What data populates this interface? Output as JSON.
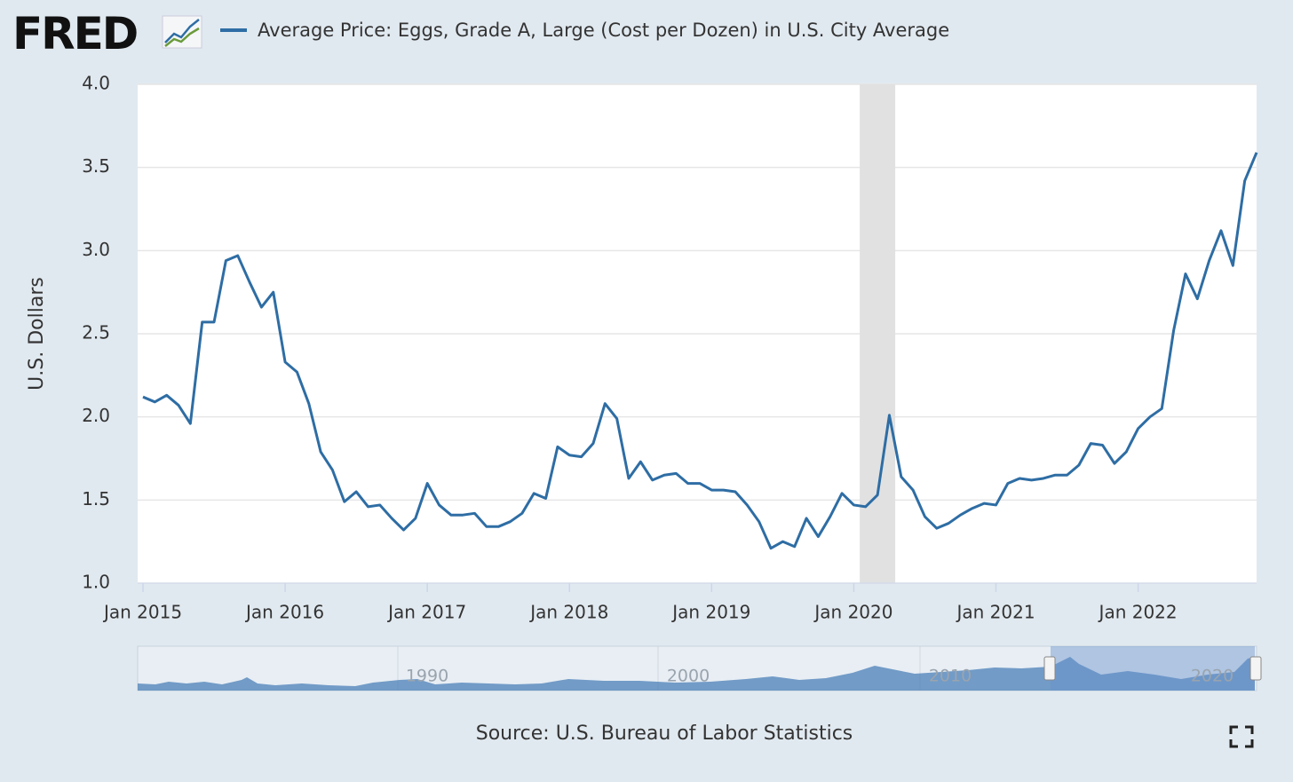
{
  "logo": "FRED",
  "source": "Source: U.S. Bureau of Labor Statistics",
  "navigator": {
    "labels": [
      "1990",
      "2000",
      "2010",
      "2020"
    ]
  },
  "chart_data": {
    "type": "line",
    "y_label": "U.S. Dollars",
    "x": [
      "2015-01",
      "2015-02",
      "2015-03",
      "2015-04",
      "2015-05",
      "2015-06",
      "2015-07",
      "2015-08",
      "2015-09",
      "2015-10",
      "2015-11",
      "2015-12",
      "2016-01",
      "2016-02",
      "2016-03",
      "2016-04",
      "2016-05",
      "2016-06",
      "2016-07",
      "2016-08",
      "2016-09",
      "2016-10",
      "2016-11",
      "2016-12",
      "2017-01",
      "2017-02",
      "2017-03",
      "2017-04",
      "2017-05",
      "2017-06",
      "2017-07",
      "2017-08",
      "2017-09",
      "2017-10",
      "2017-11",
      "2017-12",
      "2018-01",
      "2018-02",
      "2018-03",
      "2018-04",
      "2018-05",
      "2018-06",
      "2018-07",
      "2018-08",
      "2018-09",
      "2018-10",
      "2018-11",
      "2018-12",
      "2019-01",
      "2019-02",
      "2019-03",
      "2019-04",
      "2019-05",
      "2019-06",
      "2019-07",
      "2019-08",
      "2019-09",
      "2019-10",
      "2019-11",
      "2019-12",
      "2020-01",
      "2020-02",
      "2020-03",
      "2020-04",
      "2020-05",
      "2020-06",
      "2020-07",
      "2020-08",
      "2020-09",
      "2020-10",
      "2020-11",
      "2020-12",
      "2021-01",
      "2021-02",
      "2021-03",
      "2021-04",
      "2021-05",
      "2021-06",
      "2021-07",
      "2021-08",
      "2021-09",
      "2021-10",
      "2021-11",
      "2021-12",
      "2022-01",
      "2022-02",
      "2022-03",
      "2022-04",
      "2022-05",
      "2022-06",
      "2022-07",
      "2022-08",
      "2022-09",
      "2022-10",
      "2022-11"
    ],
    "series": [
      {
        "name": "Average Price: Eggs, Grade A, Large (Cost per Dozen) in U.S. City Average",
        "color": "#2e6da4",
        "values": [
          2.12,
          2.09,
          2.13,
          2.07,
          1.96,
          2.57,
          2.57,
          2.94,
          2.97,
          2.81,
          2.66,
          2.75,
          2.33,
          2.27,
          2.08,
          1.79,
          1.68,
          1.49,
          1.55,
          1.46,
          1.47,
          1.39,
          1.32,
          1.39,
          1.6,
          1.47,
          1.41,
          1.41,
          1.42,
          1.34,
          1.34,
          1.37,
          1.42,
          1.54,
          1.51,
          1.82,
          1.77,
          1.76,
          1.84,
          2.08,
          1.99,
          1.63,
          1.73,
          1.62,
          1.65,
          1.66,
          1.6,
          1.6,
          1.56,
          1.56,
          1.55,
          1.47,
          1.37,
          1.21,
          1.25,
          1.22,
          1.39,
          1.28,
          1.4,
          1.54,
          1.47,
          1.46,
          1.53,
          2.01,
          1.64,
          1.56,
          1.4,
          1.33,
          1.36,
          1.41,
          1.45,
          1.48,
          1.47,
          1.6,
          1.63,
          1.62,
          1.63,
          1.65,
          1.65,
          1.71,
          1.84,
          1.83,
          1.72,
          1.79,
          1.93,
          2.0,
          2.05,
          2.52,
          2.86,
          2.71,
          2.94,
          3.12,
          2.91,
          3.42,
          3.59
        ]
      }
    ],
    "xlim": [
      "2015-01",
      "2022-11"
    ],
    "xticks": [
      {
        "value": "2015-01",
        "label": "Jan 2015"
      },
      {
        "value": "2016-01",
        "label": "Jan 2016"
      },
      {
        "value": "2017-01",
        "label": "Jan 2017"
      },
      {
        "value": "2018-01",
        "label": "Jan 2018"
      },
      {
        "value": "2019-01",
        "label": "Jan 2019"
      },
      {
        "value": "2020-01",
        "label": "Jan 2020"
      },
      {
        "value": "2021-01",
        "label": "Jan 2021"
      },
      {
        "value": "2022-01",
        "label": "Jan 2022"
      }
    ],
    "ylim": [
      1.0,
      4.0
    ],
    "yticks": [
      {
        "value": 1.0,
        "label": "1.0"
      },
      {
        "value": 1.5,
        "label": "1.5"
      },
      {
        "value": 2.0,
        "label": "2.0"
      },
      {
        "value": 2.5,
        "label": "2.5"
      },
      {
        "value": 3.0,
        "label": "3.0"
      },
      {
        "value": 3.5,
        "label": "3.5"
      },
      {
        "value": 4.0,
        "label": "4.0"
      }
    ],
    "grid": true,
    "recessions": [
      {
        "start": "2020-02",
        "end": "2020-04"
      }
    ]
  }
}
